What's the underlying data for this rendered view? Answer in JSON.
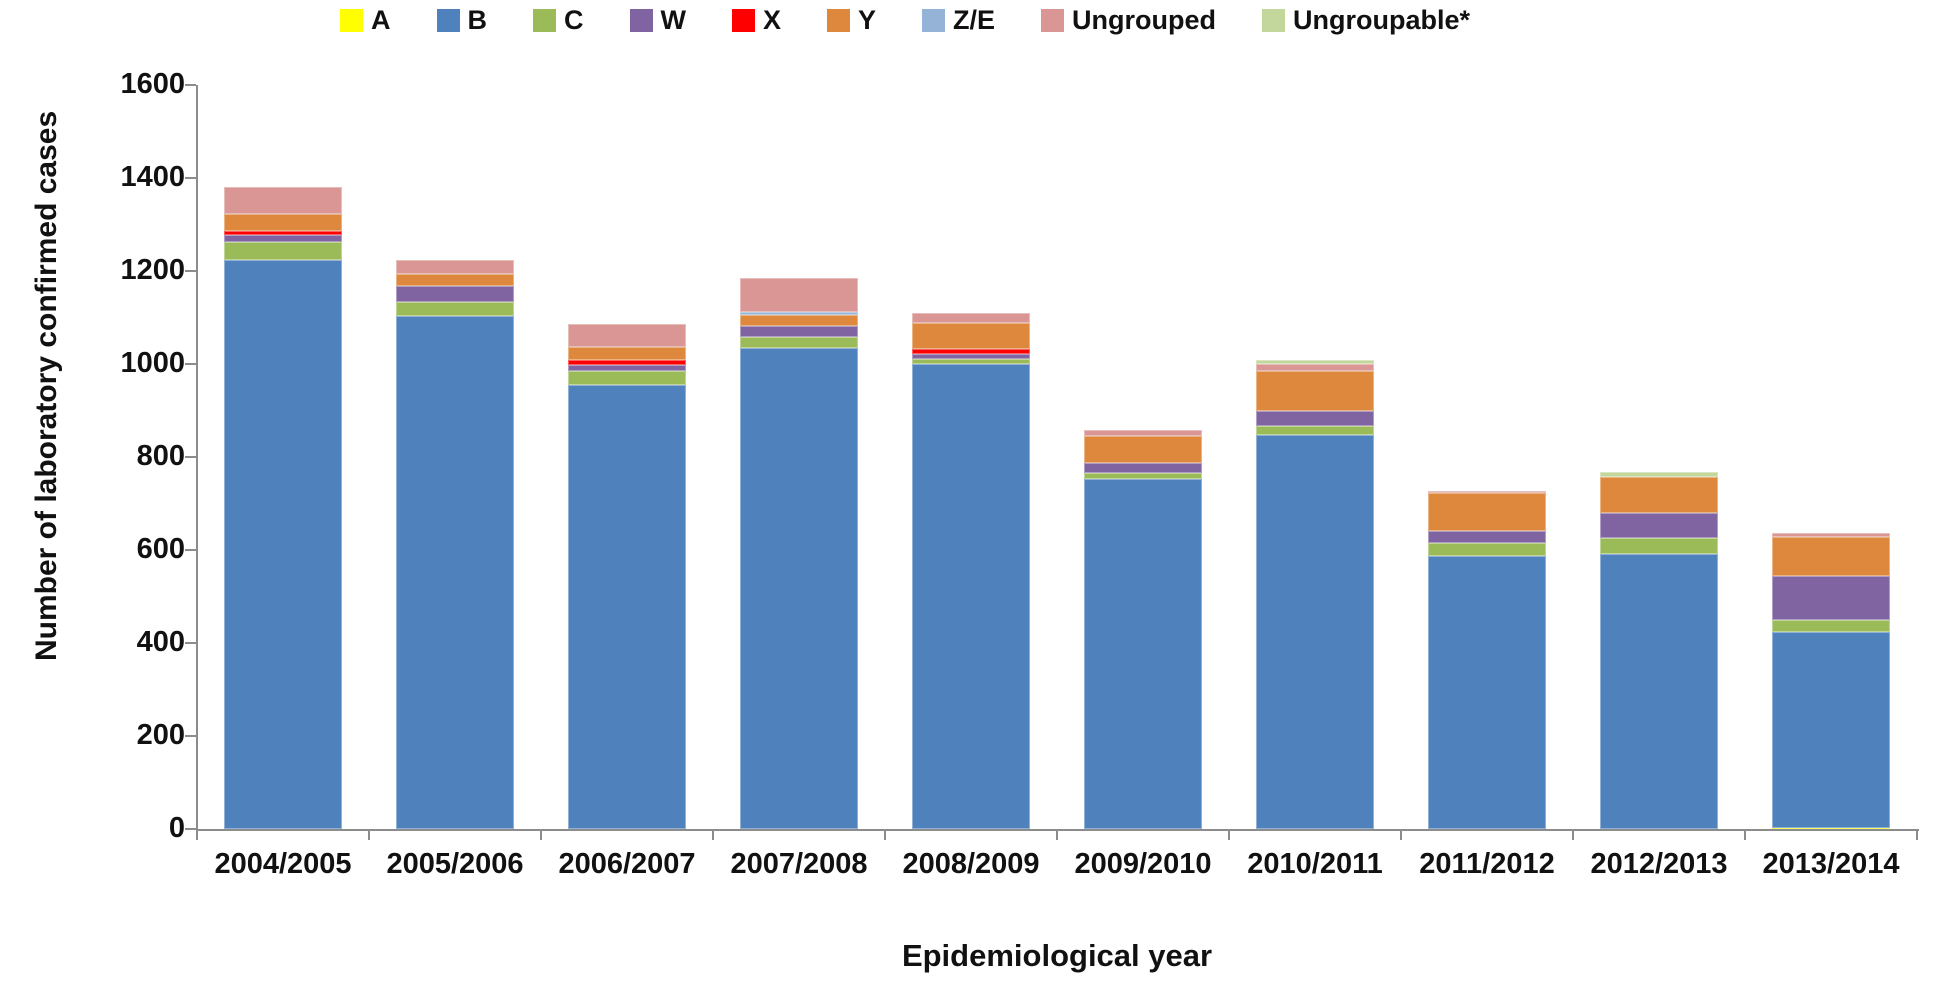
{
  "chart_data": {
    "type": "bar",
    "stacked": true,
    "title": "",
    "xlabel": "Epidemiological year",
    "ylabel": "Number of laboratory confirmed cases",
    "ylim": [
      0,
      1600
    ],
    "yticks": [
      0,
      200,
      400,
      600,
      800,
      1000,
      1200,
      1400,
      1600
    ],
    "grid": false,
    "legend_position": "top",
    "axis_color": "#8c8c8c",
    "text_color": "#111111",
    "categories": [
      "2004/2005",
      "2005/2006",
      "2006/2007",
      "2007/2008",
      "2008/2009",
      "2009/2010",
      "2010/2011",
      "2011/2012",
      "2012/2013",
      "2013/2014"
    ],
    "series": [
      {
        "name": "A",
        "color": "#FFFF00",
        "values": [
          0,
          0,
          0,
          0,
          0,
          0,
          0,
          0,
          0,
          2
        ]
      },
      {
        "name": "B",
        "color": "#4F81BD",
        "values": [
          1224,
          1103,
          955,
          1034,
          1000,
          753,
          847,
          587,
          591,
          422
        ]
      },
      {
        "name": "C",
        "color": "#9BBB59",
        "values": [
          38,
          30,
          30,
          24,
          11,
          13,
          20,
          28,
          35,
          25
        ]
      },
      {
        "name": "W",
        "color": "#8064A2",
        "values": [
          15,
          35,
          13,
          24,
          11,
          21,
          32,
          26,
          54,
          95
        ]
      },
      {
        "name": "X",
        "color": "#FF0000",
        "values": [
          9,
          0,
          11,
          0,
          10,
          0,
          0,
          0,
          0,
          0
        ]
      },
      {
        "name": "Y",
        "color": "#DD883D",
        "values": [
          37,
          26,
          28,
          23,
          56,
          58,
          86,
          82,
          77,
          84
        ]
      },
      {
        "name": "Z/E",
        "color": "#95B3D7",
        "values": [
          0,
          0,
          0,
          6,
          0,
          0,
          0,
          0,
          0,
          0
        ]
      },
      {
        "name": "Ungrouped",
        "color": "#D99694",
        "values": [
          58,
          30,
          49,
          75,
          22,
          13,
          15,
          4,
          0,
          9
        ]
      },
      {
        "name": "Ungroupable*",
        "color": "#C3D69B",
        "values": [
          0,
          0,
          0,
          0,
          0,
          0,
          9,
          0,
          11,
          0
        ]
      }
    ]
  }
}
